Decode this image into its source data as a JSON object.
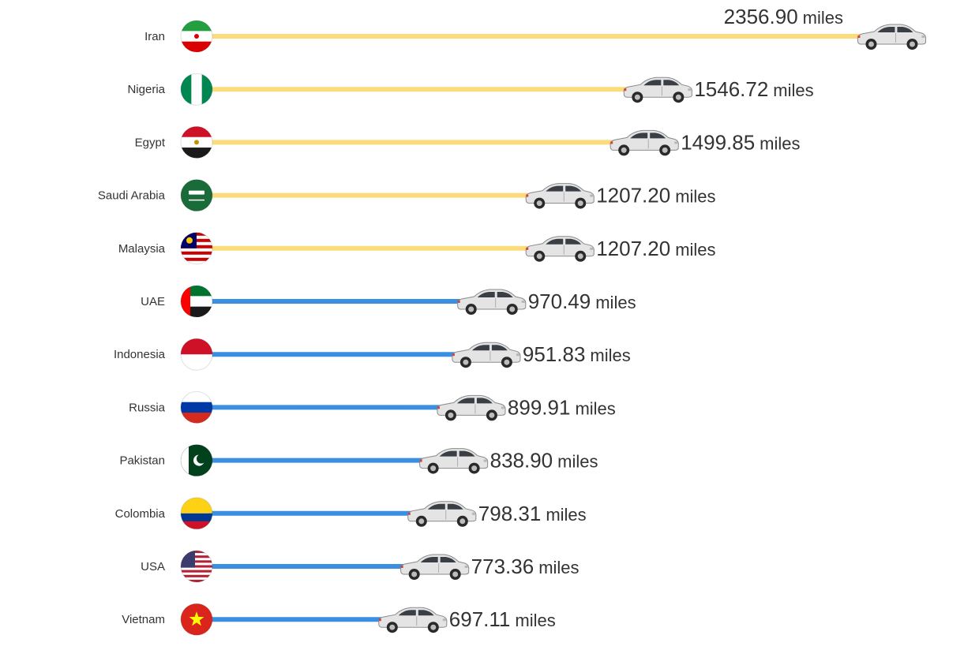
{
  "chart_data": {
    "type": "bar",
    "orientation": "horizontal",
    "unit": "miles",
    "categories": [
      "Iran",
      "Nigeria",
      "Egypt",
      "Saudi Arabia",
      "Malaysia",
      "UAE",
      "Indonesia",
      "Russia",
      "Pakistan",
      "Colombia",
      "USA",
      "Vietnam"
    ],
    "values": [
      2356.9,
      1546.72,
      1499.85,
      1207.2,
      1207.2,
      970.49,
      951.83,
      899.91,
      838.9,
      798.31,
      773.36,
      697.11
    ],
    "value_labels": [
      "2356.90",
      "1546.72",
      "1499.85",
      "1207.20",
      "1207.20",
      "970.49",
      "951.83",
      "899.91",
      "838.90",
      "798.31",
      "773.36",
      "697.11"
    ],
    "bar_colors": [
      "#FBDB7A",
      "#FBDB7A",
      "#FBDB7A",
      "#FBDB7A",
      "#FBDB7A",
      "#3B8FE0",
      "#3B8FE0",
      "#3B8FE0",
      "#3B8FE0",
      "#3B8FE0",
      "#3B8FE0",
      "#3B8FE0"
    ],
    "flags": [
      "iran-flag-icon",
      "nigeria-flag-icon",
      "egypt-flag-icon",
      "saudi-arabia-flag-icon",
      "malaysia-flag-icon",
      "uae-flag-icon",
      "indonesia-flag-icon",
      "russia-flag-icon",
      "pakistan-flag-icon",
      "colombia-flag-icon",
      "usa-flag-icon",
      "vietnam-flag-icon"
    ],
    "marker_icon": "car-icon",
    "grid": false,
    "legend": "none"
  }
}
